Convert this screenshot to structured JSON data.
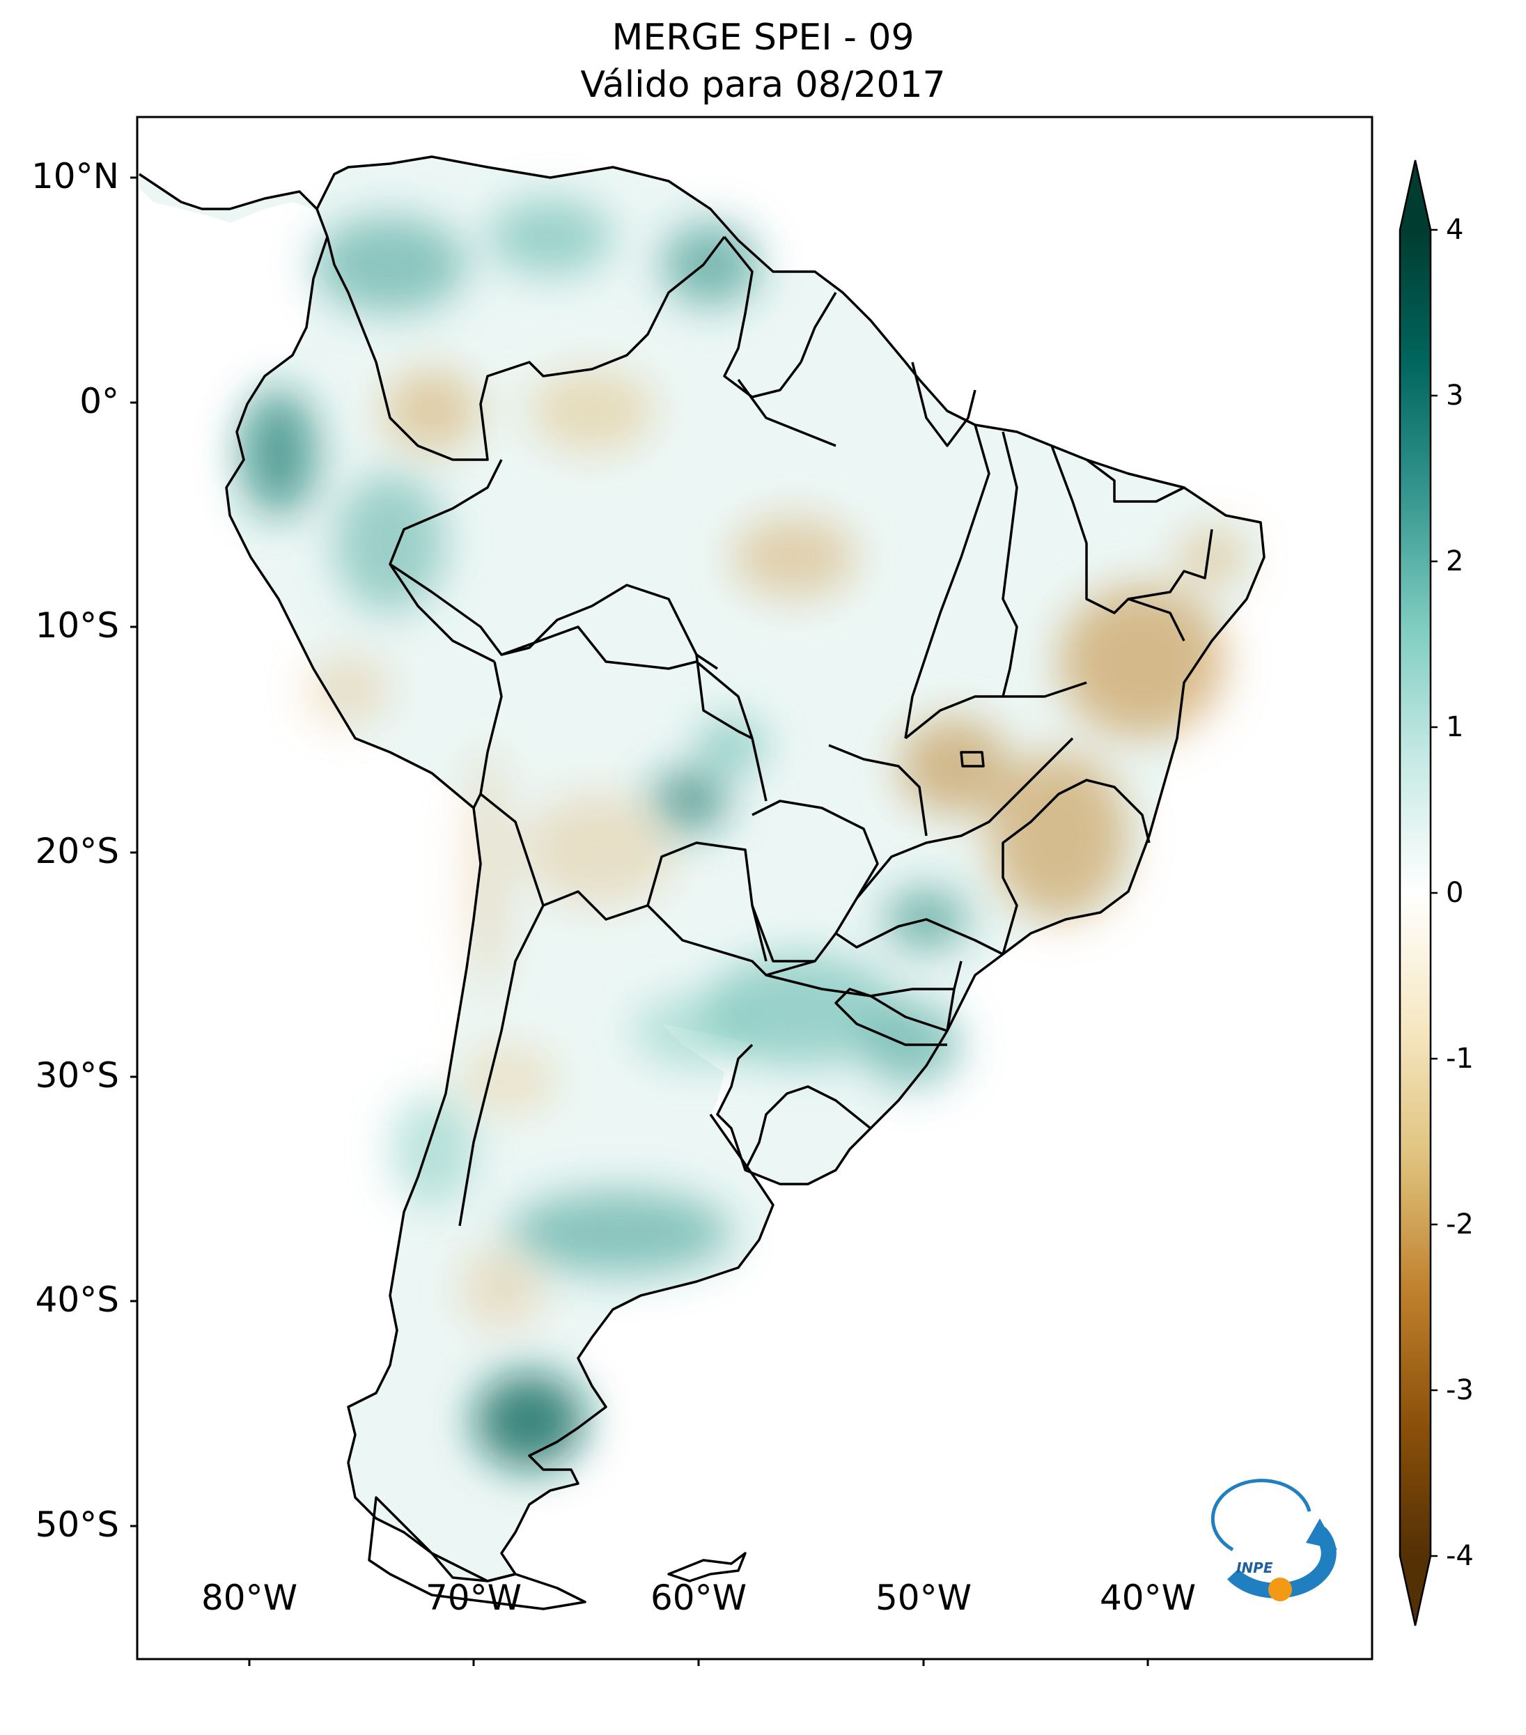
{
  "title": {
    "line1": "MERGE   SPEI - 09",
    "line2": "Válido para 08/2017"
  },
  "map": {
    "lon_range": [
      -85,
      -30
    ],
    "lat_range": [
      -56,
      13
    ],
    "lat_ticks": [
      "10°N",
      "0°",
      "10°S",
      "20°S",
      "30°S",
      "40°S",
      "50°S"
    ],
    "lon_ticks": [
      "80°W",
      "70°W",
      "60°W",
      "50°W",
      "40°W"
    ],
    "logo": {
      "text": "INPE",
      "icon": "inpe-logo-icon"
    }
  },
  "colorbar": {
    "min": -4,
    "max": 4,
    "ticks": [
      "4",
      "3",
      "2",
      "1",
      "0",
      "-1",
      "-2",
      "-3",
      "-4"
    ],
    "colormap": [
      "#543005",
      "#8c510a",
      "#bf812d",
      "#dfc27d",
      "#f6e8c3",
      "#ffffff",
      "#c7eae5",
      "#80cdc1",
      "#35978f",
      "#01665e",
      "#003c30"
    ]
  }
}
